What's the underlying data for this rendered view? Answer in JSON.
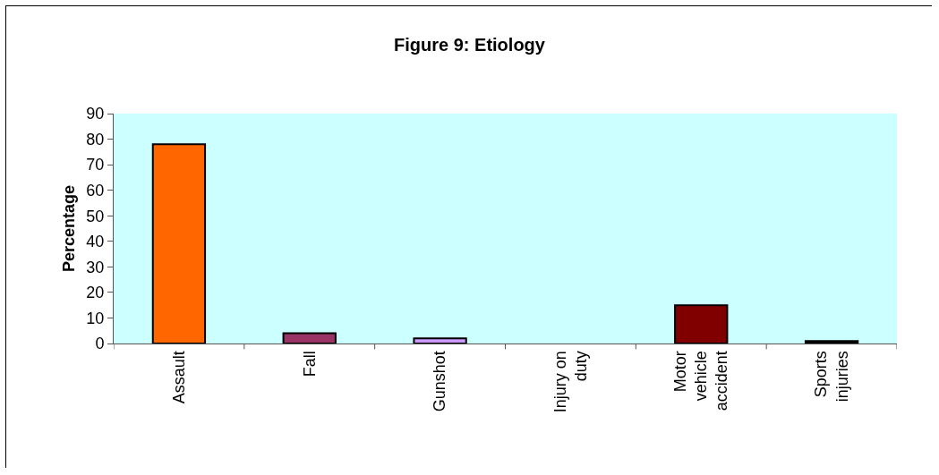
{
  "chart_data": {
    "type": "bar",
    "title": "Figure 9: Etiology",
    "ylabel": "Percentage",
    "categories": [
      "Assault",
      "Fall",
      "Gunshot",
      "Injury on duty",
      "Motor vehicle accident",
      "Sports injuries"
    ],
    "values": [
      78,
      4,
      2,
      0,
      15,
      1
    ],
    "colors": [
      "#ff6600",
      "#993366",
      "#cc99ff",
      "#ccffff",
      "#800000",
      "#000000"
    ],
    "ylim": [
      0,
      90
    ],
    "yticks": [
      0,
      10,
      20,
      30,
      40,
      50,
      60,
      70,
      80,
      90
    ],
    "grid": false
  }
}
